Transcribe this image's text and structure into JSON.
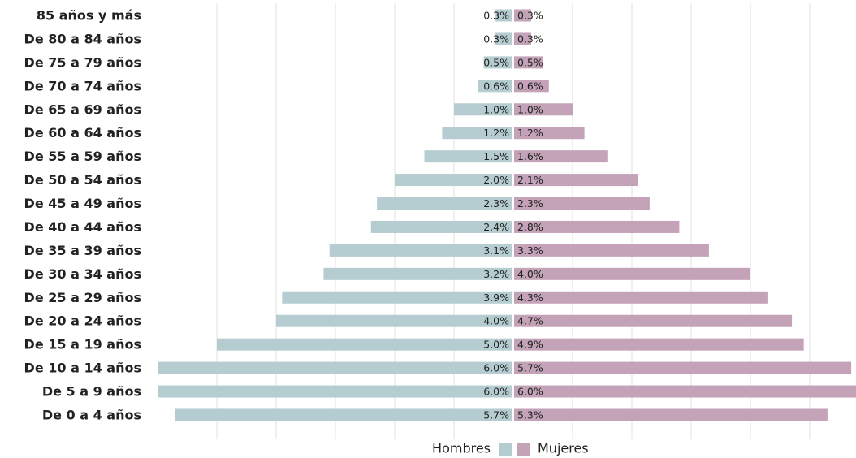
{
  "chart_data": {
    "type": "pyramid",
    "categories": [
      "85 años y más",
      "De 80 a 84 años",
      "De 75 a 79 años",
      "De 70 a 74 años",
      "De 65 a 69 años",
      "De 60 a 64 años",
      "De 55 a 59 años",
      "De 50 a 54 años",
      "De 45 a 49 años",
      "De 40 a 44 años",
      "De 35 a 39 años",
      "De 30 a 34 años",
      "De 25 a 29 años",
      "De 20 a 24 años",
      "De 15 a 19 años",
      "De 10 a 14 años",
      "De 5 a 9 años",
      "De 0 a 4 años"
    ],
    "series": [
      {
        "name": "Hombres",
        "color": "#b5cdd0",
        "side": "left",
        "values": [
          0.3,
          0.3,
          0.5,
          0.6,
          1.0,
          1.2,
          1.5,
          2.0,
          2.3,
          2.4,
          3.1,
          3.2,
          3.9,
          4.0,
          5.0,
          6.0,
          6.0,
          5.7
        ],
        "value_labels": [
          "0.3%",
          "0.3%",
          "0.5%",
          "0.6%",
          "1.0%",
          "1.2%",
          "1.5%",
          "2.0%",
          "2.3%",
          "2.4%",
          "3.1%",
          "3.2%",
          "3.9%",
          "4.0%",
          "5.0%",
          "6.0%",
          "6.0%",
          "5.7%"
        ]
      },
      {
        "name": "Mujeres",
        "color": "#c4a3b9",
        "side": "right",
        "values": [
          0.3,
          0.3,
          0.5,
          0.6,
          1.0,
          1.2,
          1.6,
          2.1,
          2.3,
          2.8,
          3.3,
          4.0,
          4.3,
          4.7,
          4.9,
          5.7,
          6.0,
          5.3
        ],
        "value_labels": [
          "0.3%",
          "0.3%",
          "0.5%",
          "0.6%",
          "1.0%",
          "1.2%",
          "1.6%",
          "2.1%",
          "2.3%",
          "2.8%",
          "3.3%",
          "4.0%",
          "4.3%",
          "4.7%",
          "4.9%",
          "5.7%",
          "6.0%",
          "5.3%"
        ]
      }
    ],
    "xlim": [
      -6,
      6
    ],
    "xticks": [
      -5,
      -4,
      -3,
      -2,
      -1,
      0,
      1,
      2,
      3,
      4,
      5
    ],
    "grid": true
  }
}
